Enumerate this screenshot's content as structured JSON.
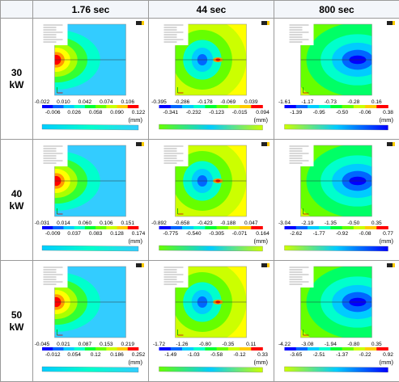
{
  "table": {
    "header": [
      "1.76 sec",
      "44 sec",
      "800 sec"
    ],
    "rows": [
      {
        "label": "30 kW",
        "cells": [
          {
            "top": [
              "-0.022",
              "0.010",
              "0.042",
              "0.074",
              "0.106"
            ],
            "bottom": [
              "-0.006",
              "0.026",
              "0.058",
              "0.090",
              "0.122"
            ],
            "unit": "(mm)"
          },
          {
            "top": [
              "-0.395",
              "-0.286",
              "-0.178",
              "-0.069",
              "0.039"
            ],
            "bottom": [
              "-0.341",
              "-0.232",
              "-0.123",
              "-0.015",
              "0.094"
            ],
            "unit": "(mm)"
          },
          {
            "top": [
              "-1.61",
              "-1.17",
              "-0.73",
              "-0.28",
              "0.16"
            ],
            "bottom": [
              "-1.39",
              "-0.95",
              "-0.50",
              "-0.06",
              "0.38"
            ],
            "unit": "(mm)"
          }
        ]
      },
      {
        "label": "40 kW",
        "cells": [
          {
            "top": [
              "-0.031",
              "0.014",
              "0.060",
              "0.106",
              "0.151"
            ],
            "bottom": [
              "-0.009",
              "0.037",
              "0.083",
              "0.128",
              "0.174"
            ],
            "unit": "(mm)"
          },
          {
            "top": [
              "-0.892",
              "-0.658",
              "-0.423",
              "-0.188",
              "0.047"
            ],
            "bottom": [
              "-0.775",
              "-0.540",
              "-0.305",
              "-0.071",
              "0.164"
            ],
            "unit": "(mm)"
          },
          {
            "top": [
              "-3.04",
              "-2.19",
              "-1.35",
              "-0.50",
              "0.35"
            ],
            "bottom": [
              "-2.62",
              "-1.77",
              "-0.92",
              "-0.08",
              "0.77"
            ],
            "unit": "(mm)"
          }
        ]
      },
      {
        "label": "50 kW",
        "cells": [
          {
            "top": [
              "-0.045",
              "0.021",
              "0.087",
              "0.153",
              "0.219"
            ],
            "bottom": [
              "-0.012",
              "0.054",
              "0.12",
              "0.186",
              "0.252"
            ],
            "unit": "(mm)"
          },
          {
            "top": [
              "-1.72",
              "-1.26",
              "-0.80",
              "-0.35",
              "0.11"
            ],
            "bottom": [
              "-1.49",
              "-1.03",
              "-0.58",
              "-0.12",
              "0.33"
            ],
            "unit": "(mm)"
          },
          {
            "top": [
              "-4.22",
              "-3.08",
              "-1.94",
              "-0.80",
              "0.35"
            ],
            "bottom": [
              "-3.65",
              "-2.51",
              "-1.37",
              "-0.22",
              "0.92"
            ],
            "unit": "(mm)"
          }
        ]
      }
    ]
  }
}
